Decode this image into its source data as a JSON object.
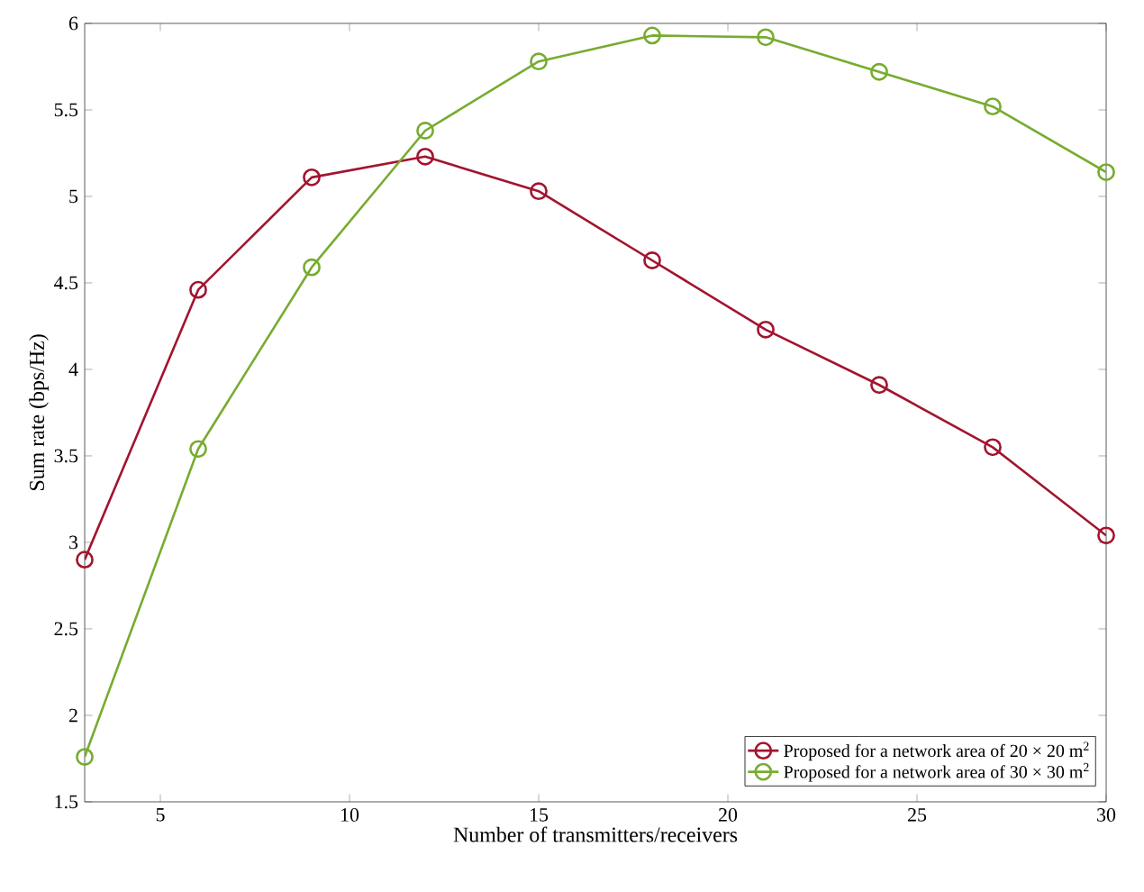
{
  "chart_data": {
    "type": "line",
    "xlabel": "Number of transmitters/receivers",
    "ylabel": "Sum rate (bps/Hz)",
    "x": [
      3,
      6,
      9,
      12,
      15,
      18,
      21,
      24,
      27,
      30
    ],
    "series": [
      {
        "name": "Proposed for a network area of 20 × 20 m$^{2}$",
        "color": "#a2142f",
        "values": [
          2.9,
          4.46,
          5.11,
          5.23,
          5.03,
          4.63,
          4.23,
          3.91,
          3.55,
          3.04
        ]
      },
      {
        "name": "Proposed for a network area of 30 × 30 m$^{2}$",
        "color": "#77ac30",
        "values": [
          1.76,
          3.54,
          4.59,
          5.38,
          5.78,
          5.93,
          5.92,
          5.72,
          5.52,
          5.14
        ]
      }
    ],
    "xlim": [
      3,
      30
    ],
    "xticks": [
      5,
      10,
      15,
      20,
      25,
      30
    ],
    "ylim": [
      1.5,
      6
    ],
    "yticks": [
      1.5,
      2,
      2.5,
      3,
      3.5,
      4,
      4.5,
      5,
      5.5,
      6
    ],
    "grid": false,
    "legend": "bottom right",
    "marker": "circle",
    "line_style": "solid"
  }
}
